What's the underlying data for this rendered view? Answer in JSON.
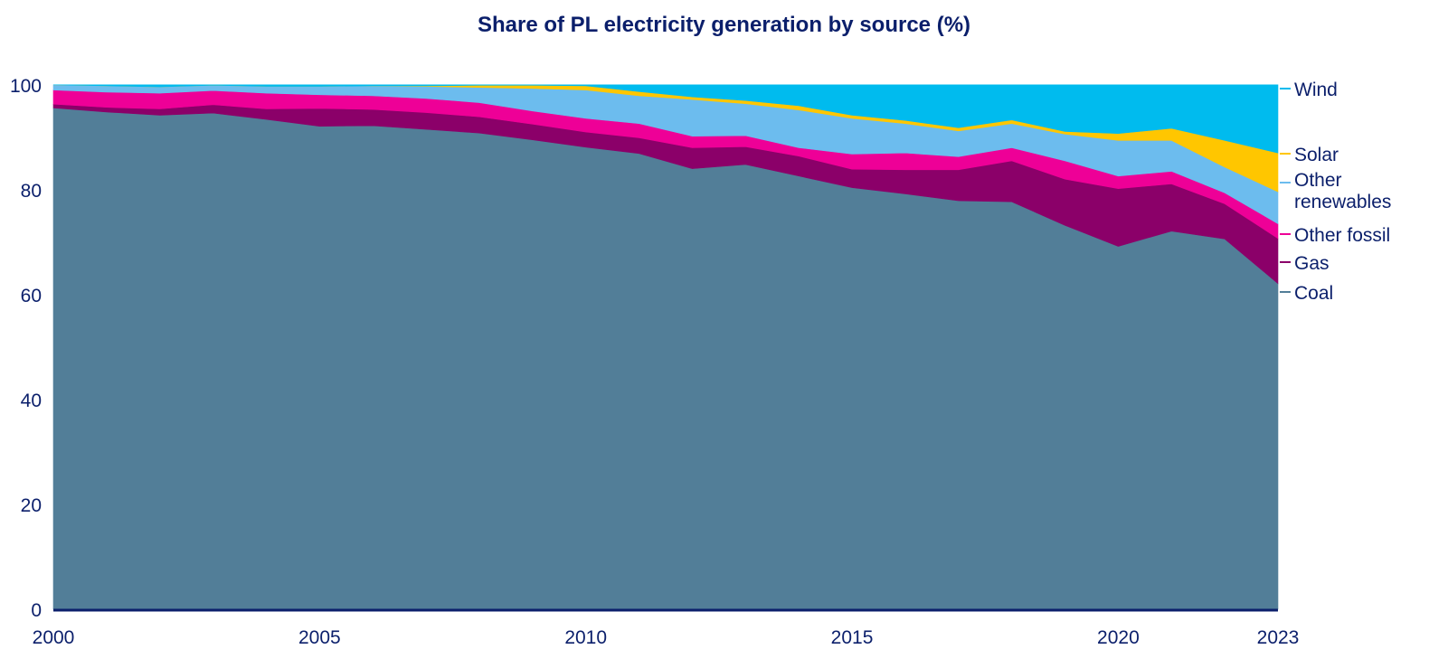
{
  "chart_data": {
    "type": "area",
    "stacked": true,
    "title": "Share of PL electricity generation by source (%)",
    "xlabel": "",
    "ylabel": "",
    "x": [
      2000,
      2001,
      2002,
      2003,
      2004,
      2005,
      2006,
      2007,
      2008,
      2009,
      2010,
      2011,
      2012,
      2013,
      2014,
      2015,
      2016,
      2017,
      2018,
      2019,
      2020,
      2021,
      2022,
      2023
    ],
    "xlim": [
      2000,
      2023
    ],
    "ylim": [
      0,
      101
    ],
    "x_ticks": [
      2000,
      2005,
      2010,
      2015,
      2020,
      2023
    ],
    "y_ticks": [
      0,
      20,
      40,
      60,
      80,
      100
    ],
    "grid": false,
    "legend_placement": "right",
    "series": [
      {
        "name": "Coal",
        "color": "#527e98",
        "values": [
          95.6,
          94.8,
          94.2,
          94.6,
          93.4,
          92.1,
          92.2,
          91.5,
          90.8,
          89.5,
          88.1,
          86.9,
          84.0,
          84.8,
          82.6,
          80.4,
          79.2,
          77.9,
          77.7,
          73.2,
          69.2,
          72.1,
          70.6,
          62.1
        ]
      },
      {
        "name": "Gas",
        "color": "#8b0069",
        "values": [
          0.7,
          0.9,
          1.2,
          1.6,
          2.0,
          3.4,
          3.1,
          3.2,
          3.1,
          3.0,
          2.9,
          3.0,
          4.0,
          3.4,
          3.8,
          3.5,
          4.6,
          5.9,
          7.8,
          8.8,
          11.0,
          9.0,
          6.7,
          8.6
        ]
      },
      {
        "name": "Other fossil",
        "color": "#ee0097",
        "values": [
          2.7,
          2.9,
          3.0,
          2.7,
          3.0,
          2.6,
          2.6,
          2.7,
          2.7,
          2.5,
          2.6,
          2.7,
          2.2,
          2.1,
          1.6,
          2.9,
          3.2,
          2.5,
          2.5,
          3.5,
          2.4,
          2.4,
          2.1,
          2.8
        ]
      },
      {
        "name": "Other renewables",
        "color": "#6cbcee",
        "values": [
          1.0,
          1.2,
          1.2,
          1.0,
          1.3,
          1.6,
          1.9,
          2.3,
          2.9,
          4.3,
          5.4,
          5.3,
          7.0,
          6.1,
          7.2,
          6.8,
          5.6,
          4.9,
          4.6,
          5.1,
          6.8,
          5.9,
          4.9,
          6.1
        ]
      },
      {
        "name": "Solar",
        "color": "#ffc600",
        "values": [
          0.0,
          0.0,
          0.0,
          0.0,
          0.0,
          0.0,
          0.0,
          0.1,
          0.4,
          0.6,
          0.8,
          0.8,
          0.5,
          0.6,
          0.8,
          0.6,
          0.6,
          0.6,
          0.7,
          0.5,
          1.3,
          2.3,
          5.1,
          7.4
        ]
      },
      {
        "name": "Wind",
        "color": "#00bbee",
        "values": [
          0.0,
          0.2,
          0.4,
          0.1,
          0.3,
          0.3,
          0.2,
          0.2,
          0.1,
          0.1,
          0.2,
          1.3,
          2.3,
          3.0,
          4.0,
          5.8,
          6.8,
          8.2,
          6.7,
          8.9,
          9.3,
          8.3,
          10.6,
          13.0
        ]
      }
    ],
    "legend_labels": [
      {
        "series": "Wind",
        "lines": [
          "Wind"
        ]
      },
      {
        "series": "Solar",
        "lines": [
          "Solar"
        ]
      },
      {
        "series": "Other renewables",
        "lines": [
          "Other",
          "renewables"
        ]
      },
      {
        "series": "Other fossil",
        "lines": [
          "Other fossil"
        ]
      },
      {
        "series": "Gas",
        "lines": [
          "Gas"
        ]
      },
      {
        "series": "Coal",
        "lines": [
          "Coal"
        ]
      }
    ],
    "axis_color": "#0b1f6b",
    "text_color": "#0b1f6b"
  }
}
